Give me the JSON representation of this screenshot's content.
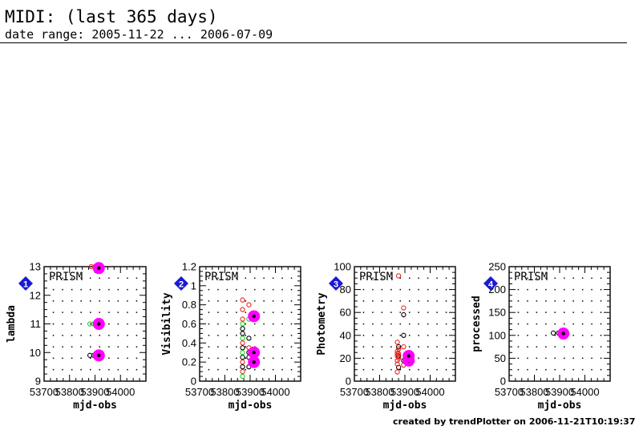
{
  "header": {
    "title": "MIDI: (last 365 days)",
    "subtitle": "date range: 2005-11-22 ... 2006-07-09"
  },
  "footer": "created by trendPlotter on 2006-11-21T10:19:37",
  "colors": {
    "black": "#000000",
    "red": "#e8241c",
    "green": "#22cc22",
    "magenta": "#ff00ff",
    "marker": "#1a1ad6"
  },
  "chart_data": [
    {
      "type": "scatter",
      "panel_number": "1",
      "panel_label": "PRISM",
      "xlabel": "mjd-obs",
      "ylabel": "lambda",
      "xlim": [
        53700,
        54100
      ],
      "ylim": [
        9,
        13
      ],
      "xticks": [
        53700,
        53800,
        53900,
        54000
      ],
      "xtick_labels": [
        "53700",
        "53800",
        "53900",
        "54000"
      ],
      "yticks": [
        9,
        10,
        11,
        12,
        13
      ],
      "ytick_labels": [
        "9",
        "10",
        "11",
        "12",
        "13"
      ],
      "series": [
        {
          "color": "black",
          "marker": "open-circle",
          "x": [
            53880,
            53895,
            53910
          ],
          "y": [
            9.9,
            9.9,
            9.9
          ]
        },
        {
          "color": "green",
          "marker": "open-circle",
          "x": [
            53880,
            53895
          ],
          "y": [
            11,
            11
          ]
        },
        {
          "color": "red",
          "marker": "open-circle",
          "x": [
            53885,
            53900
          ],
          "y": [
            13,
            13
          ]
        },
        {
          "color": "magenta",
          "marker": "highlight",
          "x": [
            53915,
            53915,
            53915
          ],
          "y": [
            9.9,
            11,
            12.95
          ]
        }
      ]
    },
    {
      "type": "scatter",
      "panel_number": "2",
      "panel_label": "PRISM",
      "xlabel": "mjd-obs",
      "ylabel": "Visibility",
      "xlim": [
        53700,
        54100
      ],
      "ylim": [
        0,
        1.2
      ],
      "xticks": [
        53700,
        53800,
        53900,
        54000
      ],
      "xtick_labels": [
        "53700",
        "53800",
        "53900",
        "54000"
      ],
      "yticks": [
        0,
        0.2,
        0.4,
        0.6,
        0.8,
        1,
        1.2
      ],
      "ytick_labels": [
        "0",
        "0.2",
        "0.4",
        "0.6",
        "0.8",
        "1",
        "1.2"
      ],
      "series": [
        {
          "color": "black",
          "marker": "open-circle",
          "x": [
            53870,
            53870,
            53870,
            53870,
            53870,
            53895,
            53895,
            53895,
            53895
          ],
          "y": [
            0.15,
            0.25,
            0.35,
            0.5,
            0.55,
            0.15,
            0.25,
            0.3,
            0.45
          ]
        },
        {
          "color": "green",
          "marker": "open-circle",
          "x": [
            53870,
            53870,
            53870,
            53870,
            53895
          ],
          "y": [
            0.05,
            0.3,
            0.45,
            0.6,
            0.65
          ]
        },
        {
          "color": "red",
          "marker": "open-circle",
          "x": [
            53870,
            53870,
            53870,
            53870,
            53870,
            53870,
            53895,
            53895
          ],
          "y": [
            0.1,
            0.2,
            0.4,
            0.65,
            0.75,
            0.85,
            0.35,
            0.8
          ]
        },
        {
          "color": "magenta",
          "marker": "highlight",
          "x": [
            53915,
            53915,
            53915
          ],
          "y": [
            0.2,
            0.3,
            0.68
          ]
        }
      ]
    },
    {
      "type": "scatter",
      "panel_number": "3",
      "panel_label": "PRISM",
      "xlabel": "mjd-obs",
      "ylabel": "Photometry",
      "xlim": [
        53700,
        54100
      ],
      "ylim": [
        0,
        100
      ],
      "xticks": [
        53700,
        53800,
        53900,
        54000
      ],
      "xtick_labels": [
        "53700",
        "53800",
        "53900",
        "54000"
      ],
      "yticks": [
        0,
        20,
        40,
        60,
        80,
        100
      ],
      "ytick_labels": [
        "0",
        "20",
        "40",
        "60",
        "80",
        "100"
      ],
      "series": [
        {
          "color": "black",
          "marker": "open-circle",
          "x": [
            53875,
            53875,
            53875,
            53895,
            53895,
            53895
          ],
          "y": [
            12,
            22,
            30,
            18,
            40,
            58
          ]
        },
        {
          "color": "red",
          "marker": "open-circle",
          "x": [
            53870,
            53870,
            53870,
            53870,
            53870,
            53870,
            53870,
            53875,
            53875,
            53875,
            53895,
            53895,
            53895,
            53875
          ],
          "y": [
            8,
            15,
            18,
            22,
            24,
            26,
            34,
            20,
            24,
            28,
            14,
            30,
            64,
            92
          ]
        },
        {
          "color": "magenta",
          "marker": "highlight",
          "x": [
            53915,
            53915
          ],
          "y": [
            18,
            22
          ]
        }
      ]
    },
    {
      "type": "scatter",
      "panel_number": "4",
      "panel_label": "PRISM",
      "xlabel": "mjd-obs",
      "ylabel": "processed",
      "xlim": [
        53700,
        54100
      ],
      "ylim": [
        0,
        250
      ],
      "xticks": [
        53700,
        53800,
        53900,
        54000
      ],
      "xtick_labels": [
        "53700",
        "53800",
        "53900",
        "54000"
      ],
      "yticks": [
        0,
        50,
        100,
        150,
        200,
        250
      ],
      "ytick_labels": [
        "0",
        "50",
        "100",
        "150",
        "200",
        "250"
      ],
      "series": [
        {
          "color": "black",
          "marker": "open-circle",
          "x": [
            53875,
            53895
          ],
          "y": [
            105,
            105
          ]
        },
        {
          "color": "magenta",
          "marker": "highlight",
          "x": [
            53915
          ],
          "y": [
            104
          ]
        }
      ]
    }
  ]
}
